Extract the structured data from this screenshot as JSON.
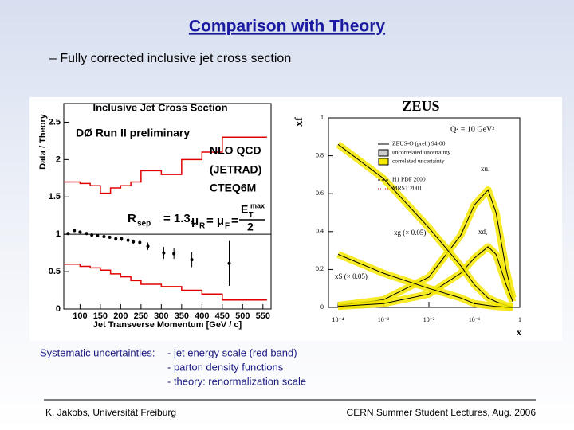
{
  "slide": {
    "title": "Comparison with Theory",
    "bullet": "– Fully corrected inclusive jet cross section",
    "notes_head": "Systematic uncertainties:",
    "notes": [
      "- jet energy scale (red band)",
      "- parton density functions",
      "- theory: renormalization scale"
    ],
    "footer_left": "K. Jakobs, Universität Freiburg",
    "footer_right": "CERN Summer Student Lectures,  Aug.  2006"
  },
  "chart_data": [
    {
      "type": "scatter",
      "title": "Inclusive Jet Cross Section",
      "y_label": "Data / Theory",
      "x_label": "Jet Transverse Momentum [GeV / c]",
      "annotations": [
        "DØ Run II preliminary",
        "NLO QCD",
        "(JETRAD)",
        "CTEQ6M"
      ],
      "formula": [
        "R",
        "sep",
        "= 1.3,",
        "μ",
        "R",
        "= μ",
        "F",
        "=",
        "E",
        "max",
        "T",
        "2"
      ],
      "x": [
        70.6,
        86,
        100,
        116,
        129,
        143,
        159,
        173,
        188,
        202,
        218,
        231,
        247,
        267,
        306,
        331,
        375,
        467
      ],
      "values": [
        1.01,
        1.05,
        1.03,
        1.01,
        0.99,
        0.98,
        0.97,
        0.96,
        0.94,
        0.94,
        0.92,
        0.9,
        0.89,
        0.84,
        0.75,
        0.74,
        0.66,
        0.61
      ],
      "errors": [
        0.02,
        0.02,
        0.02,
        0.02,
        0.02,
        0.02,
        0.02,
        0.02,
        0.03,
        0.03,
        0.03,
        0.03,
        0.04,
        0.05,
        0.08,
        0.07,
        0.1,
        0.3
      ],
      "color": "#000000",
      "band": {
        "color": "#e00000",
        "bins": [
          60,
          100,
          125,
          150,
          175,
          200,
          225,
          250,
          300,
          350,
          400,
          450,
          560
        ],
        "upper": [
          1.7,
          1.68,
          1.65,
          1.55,
          1.62,
          1.65,
          1.7,
          1.85,
          1.8,
          2.0,
          2.1,
          2.3
        ],
        "lower": [
          0.6,
          0.57,
          0.55,
          0.52,
          0.47,
          0.43,
          0.38,
          0.33,
          0.3,
          0.25,
          0.2,
          0.12
        ]
      },
      "xlim": [
        60,
        570
      ],
      "ylim": [
        0,
        2.75
      ],
      "xticks": [
        100,
        150,
        200,
        250,
        300,
        350,
        400,
        450,
        500,
        550
      ],
      "yticks": [
        0,
        0.5,
        1,
        1.5,
        2,
        2.5
      ]
    },
    {
      "type": "line",
      "title": "ZEUS",
      "subtitle": "Q² = 10 GeV²",
      "y_label": "xf",
      "x_label": "x",
      "legend": [
        "ZEUS-O (prel.) 94-00",
        "uncorrelated uncertainty",
        "correlated uncertainty",
        "H1 PDF 2000",
        "MRST 2001"
      ],
      "log_x": true,
      "x": [
        0.0001,
        0.001,
        0.01,
        0.05,
        0.1,
        0.2,
        0.3,
        0.5,
        0.7
      ],
      "series": [
        {
          "name": "xuᵥ",
          "color": "#000000",
          "values": [
            0.01,
            0.04,
            0.16,
            0.38,
            0.54,
            0.62,
            0.5,
            0.2,
            0.05
          ]
        },
        {
          "name": "xdᵥ",
          "color": "#000000",
          "values": [
            0.005,
            0.02,
            0.07,
            0.18,
            0.26,
            0.32,
            0.28,
            0.12,
            0.03
          ]
        },
        {
          "name": "xg (× 0.05)",
          "color": "#000000",
          "values": [
            0.86,
            0.68,
            0.42,
            0.22,
            0.12,
            0.05,
            0.03,
            0.01,
            0
          ]
        },
        {
          "name": "xS (× 0.05)",
          "color": "#000000",
          "values": [
            0.28,
            0.18,
            0.1,
            0.05,
            0.02,
            0.01,
            0.005,
            0.001,
            0
          ]
        }
      ],
      "band_color": "#f5e800",
      "xlim": [
        0.0001,
        1
      ],
      "ylim": [
        0,
        1
      ],
      "xticks": [
        {
          "value": 0.0001,
          "label": "10⁻⁴"
        },
        {
          "value": 0.001,
          "label": "10⁻³"
        },
        {
          "value": 0.01,
          "label": "10⁻²"
        },
        {
          "value": 0.1,
          "label": "10⁻¹"
        },
        1
      ],
      "yticks": [
        0,
        0.2,
        0.4,
        0.6,
        0.8,
        1
      ]
    }
  ]
}
